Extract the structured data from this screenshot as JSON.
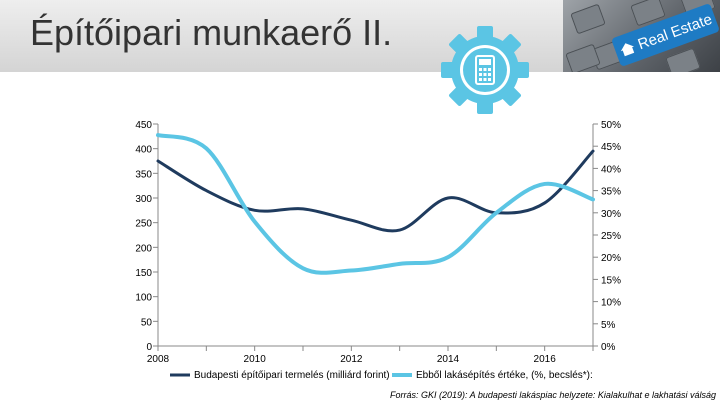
{
  "header": {
    "title": "Építőipari munkaerő II.",
    "photo_key_label": "Real Estate",
    "house_icon": "house-icon",
    "calculator_icon": "calculator-gear-icon"
  },
  "colors": {
    "header_bg": "#dddddd",
    "gear": "#5bc5e4",
    "series_dark": "#1f3b5e",
    "series_light": "#5bc5e4"
  },
  "chart_data": {
    "type": "line",
    "title": "",
    "x": [
      2008,
      2009,
      2010,
      2011,
      2012,
      2013,
      2014,
      2015,
      2016,
      2017
    ],
    "x_ticks": [
      "2008",
      "2010",
      "2012",
      "2014",
      "2016"
    ],
    "xlim": [
      2008,
      2017
    ],
    "y_left_ticks": [
      "0",
      "50",
      "100",
      "150",
      "200",
      "250",
      "300",
      "350",
      "400",
      "450"
    ],
    "y_right_ticks": [
      "0%",
      "5%",
      "10%",
      "15%",
      "20%",
      "25%",
      "30%",
      "35%",
      "40%",
      "45%",
      "50%"
    ],
    "ylim_left": [
      0,
      450
    ],
    "ylim_right": [
      0,
      50
    ],
    "grid": false,
    "legend_position": "bottom",
    "series": [
      {
        "name": "Budapesti építőipari termelés (milliárd forint)",
        "axis": "left",
        "color": "#1f3b5e",
        "values": [
          375,
          315,
          275,
          278,
          255,
          235,
          300,
          270,
          290,
          395
        ]
      },
      {
        "name": "Ebből lakásépítés értéke, (%, becslés*):",
        "axis": "right",
        "color": "#5bc5e4",
        "values": [
          47.5,
          44.5,
          28,
          17.5,
          17,
          18.5,
          20,
          30,
          36.5,
          33
        ]
      }
    ]
  },
  "source": "Forrás: GKI (2019): A budapesti lakáspiac helyzete: Kialakulhat e lakhatási válság"
}
